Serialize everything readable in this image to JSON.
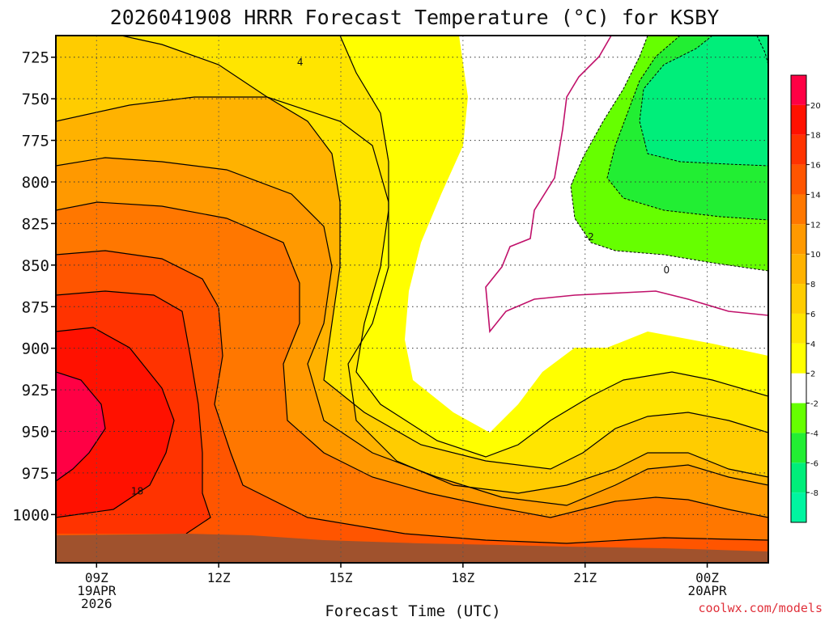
{
  "chart_data": {
    "type": "contour",
    "title": "2026041908 HRRR Forecast Temperature (°C) for KSBY",
    "xlabel": "Forecast Time (UTC)",
    "ylabel": "",
    "credit": "coolwx.com/models",
    "x_range_hours_from_09Z": [
      -1,
      16.5
    ],
    "y_range_mb": [
      712,
      1029
    ],
    "y_ticks": [
      {
        "value": 725,
        "label": "725"
      },
      {
        "value": 750,
        "label": "750"
      },
      {
        "value": 775,
        "label": "775"
      },
      {
        "value": 800,
        "label": "800"
      },
      {
        "value": 825,
        "label": "825"
      },
      {
        "value": 850,
        "label": "850"
      },
      {
        "value": 875,
        "label": "875"
      },
      {
        "value": 900,
        "label": "900"
      },
      {
        "value": 925,
        "label": "925"
      },
      {
        "value": 950,
        "label": "950"
      },
      {
        "value": 975,
        "label": "975"
      },
      {
        "value": 1000,
        "label": "1000"
      }
    ],
    "x_ticks": [
      {
        "hour": 0,
        "label": "09Z",
        "line2": "19APR",
        "line3": "2026"
      },
      {
        "hour": 3,
        "label": "12Z",
        "line2": "",
        "line3": ""
      },
      {
        "hour": 6,
        "label": "15Z",
        "line2": "",
        "line3": ""
      },
      {
        "hour": 9,
        "label": "18Z",
        "line2": "",
        "line3": ""
      },
      {
        "hour": 12,
        "label": "21Z",
        "line2": "",
        "line3": ""
      },
      {
        "hour": 15,
        "label": "00Z",
        "line2": "20APR",
        "line3": ""
      }
    ],
    "colorbar": [
      {
        "lo": -10,
        "hi": -8,
        "color": "#00f5a0"
      },
      {
        "lo": -8,
        "hi": -6,
        "color": "#00ee7a"
      },
      {
        "lo": -6,
        "hi": -4,
        "color": "#22ee33"
      },
      {
        "lo": -4,
        "hi": -2,
        "color": "#66ff00"
      },
      {
        "lo": -2,
        "hi": 2,
        "color": "#ffffff"
      },
      {
        "lo": 2,
        "hi": 4,
        "color": "#ffff00"
      },
      {
        "lo": 4,
        "hi": 6,
        "color": "#ffe500"
      },
      {
        "lo": 6,
        "hi": 8,
        "color": "#ffcc00"
      },
      {
        "lo": 8,
        "hi": 10,
        "color": "#ffb200"
      },
      {
        "lo": 10,
        "hi": 12,
        "color": "#ff9900"
      },
      {
        "lo": 12,
        "hi": 14,
        "color": "#ff7700"
      },
      {
        "lo": 14,
        "hi": 16,
        "color": "#ff5500"
      },
      {
        "lo": 16,
        "hi": 18,
        "color": "#ff3300"
      },
      {
        "lo": 18,
        "hi": 20,
        "color": "#ff1100"
      },
      {
        "lo": 20,
        "hi": 22,
        "color": "#ff0044"
      }
    ],
    "colorbar_labels": [
      "-8",
      "-6",
      "-4",
      "-2",
      "2",
      "4",
      "6",
      "8",
      "10",
      "12",
      "14",
      "16",
      "18",
      "20"
    ],
    "contour_labels": [
      {
        "text": "4",
        "hour": 5.0,
        "mb": 728
      },
      {
        "text": "-2",
        "hour": 12.1,
        "mb": 833
      },
      {
        "text": "0",
        "hour": 14.0,
        "mb": 853
      },
      {
        "text": "18",
        "hour": 1.0,
        "mb": 986
      }
    ],
    "grid": true,
    "ground_color": "#a0522d"
  }
}
